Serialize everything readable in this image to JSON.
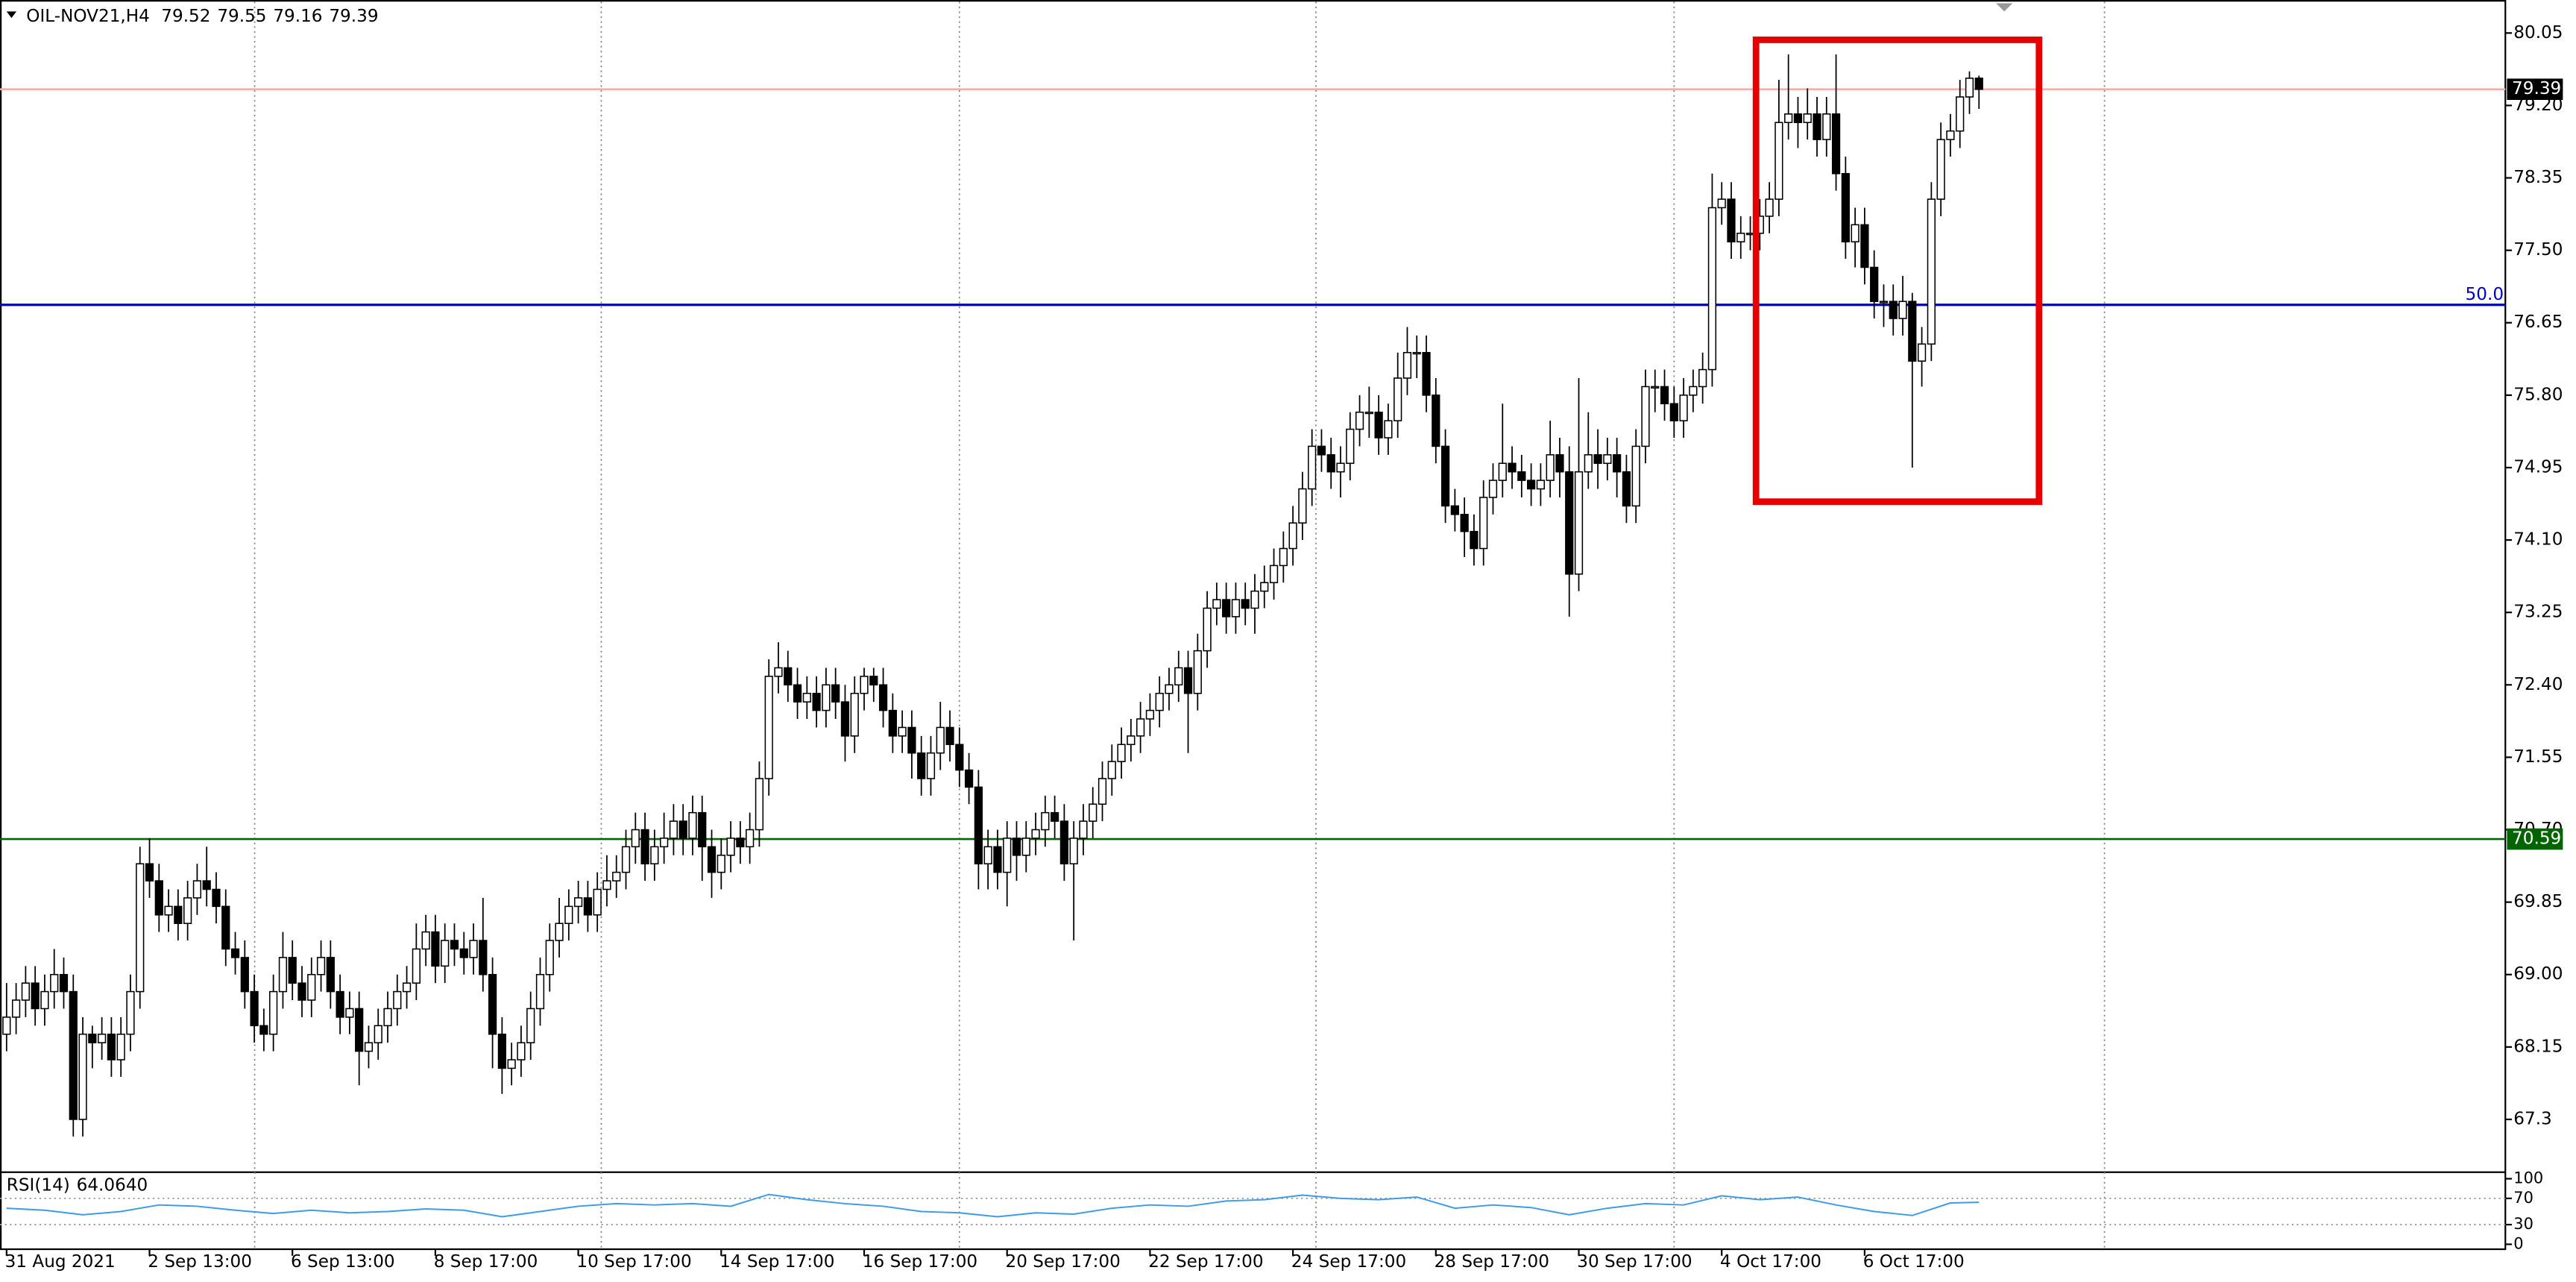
{
  "chart_data": {
    "type": "candlestick",
    "title": "OIL-NOV21,H4",
    "up_color": "#ffffff",
    "down_color": "#000000",
    "categories": [
      "31 Aug 2021",
      null,
      null,
      null,
      null,
      null,
      null,
      null,
      null,
      null,
      null,
      null,
      null,
      null,
      null,
      "2 Sep 13:00",
      null,
      null,
      null,
      null,
      null,
      null,
      null,
      null,
      null,
      null,
      null,
      null,
      null,
      null,
      "6 Sep 13:00",
      null,
      null,
      null,
      null,
      null,
      null,
      null,
      null,
      null,
      null,
      null,
      null,
      null,
      null,
      "8 Sep 17:00",
      null,
      null,
      null,
      null,
      null,
      null,
      null,
      null,
      null,
      null,
      null,
      null,
      null,
      null,
      "10 Sep 17:00",
      null,
      null,
      null,
      null,
      null,
      null,
      null,
      null,
      null,
      null,
      null,
      null,
      null,
      null,
      "14 Sep 17:00",
      null,
      null,
      null,
      null,
      null,
      null,
      null,
      null,
      null,
      null,
      null,
      null,
      null,
      null,
      "16 Sep 17:00",
      null,
      null,
      null,
      null,
      null,
      null,
      null,
      null,
      null,
      null,
      null,
      null,
      null,
      null,
      "20 Sep 17:00",
      null,
      null,
      null,
      null,
      null,
      null,
      null,
      null,
      null,
      null,
      null,
      null,
      null,
      null,
      "22 Sep 17:00",
      null,
      null,
      null,
      null,
      null,
      null,
      null,
      null,
      null,
      null,
      null,
      null,
      null,
      null,
      "24 Sep 17:00",
      null,
      null,
      null,
      null,
      null,
      null,
      null,
      null,
      null,
      null,
      null,
      null,
      null,
      null,
      "28 Sep 17:00",
      null,
      null,
      null,
      null,
      null,
      null,
      null,
      null,
      null,
      null,
      null,
      null,
      null,
      null,
      "30 Sep 17:00",
      null,
      null,
      null,
      null,
      null,
      null,
      null,
      null,
      null,
      null,
      null,
      null,
      null,
      null,
      "4 Oct 17:00",
      null,
      null,
      null,
      null,
      null,
      null,
      null,
      null,
      null,
      null,
      null,
      null,
      null,
      null,
      "6 Oct 17:00",
      null,
      null,
      null,
      null,
      null,
      null,
      null,
      null,
      null,
      null,
      null,
      null
    ],
    "open": [
      68.3,
      68.5,
      68.7,
      68.9,
      68.6,
      68.8,
      69.0,
      68.8,
      67.3,
      68.3,
      68.2,
      68.3,
      68.0,
      68.3,
      68.8,
      70.3,
      70.1,
      69.7,
      69.8,
      69.6,
      69.9,
      70.1,
      70.0,
      69.8,
      69.3,
      69.2,
      68.8,
      68.4,
      68.3,
      68.8,
      69.2,
      68.9,
      68.7,
      69.0,
      69.2,
      68.8,
      68.5,
      68.6,
      68.1,
      68.2,
      68.4,
      68.6,
      68.8,
      68.9,
      69.3,
      69.5,
      69.1,
      69.4,
      69.3,
      69.2,
      69.4,
      69.0,
      68.3,
      67.9,
      68.0,
      68.2,
      68.6,
      69.0,
      69.4,
      69.6,
      69.8,
      69.9,
      69.7,
      70.0,
      70.1,
      70.2,
      70.5,
      70.7,
      70.3,
      70.5,
      70.6,
      70.8,
      70.6,
      70.9,
      70.5,
      70.2,
      70.4,
      70.6,
      70.5,
      70.7,
      71.3,
      72.5,
      72.6,
      72.4,
      72.2,
      72.3,
      72.1,
      72.4,
      72.2,
      71.8,
      72.3,
      72.5,
      72.4,
      72.1,
      71.8,
      71.9,
      71.6,
      71.3,
      71.6,
      71.9,
      71.7,
      71.4,
      71.2,
      70.3,
      70.5,
      70.2,
      70.6,
      70.4,
      70.6,
      70.7,
      70.9,
      70.8,
      70.3,
      70.6,
      70.8,
      71.0,
      71.3,
      71.5,
      71.7,
      71.8,
      72.0,
      72.1,
      72.3,
      72.4,
      72.6,
      72.3,
      72.8,
      73.3,
      73.4,
      73.2,
      73.4,
      73.3,
      73.5,
      73.6,
      73.8,
      74.0,
      74.3,
      74.7,
      75.2,
      75.1,
      74.9,
      75.0,
      75.4,
      75.6,
      75.6,
      75.3,
      75.5,
      76.0,
      76.3,
      76.3,
      75.8,
      75.2,
      74.5,
      74.4,
      74.2,
      74.0,
      74.6,
      74.8,
      75.0,
      74.9,
      74.8,
      74.7,
      74.8,
      75.1,
      74.9,
      73.7,
      74.9,
      75.1,
      75.0,
      75.1,
      74.9,
      74.5,
      75.2,
      75.9,
      75.9,
      75.7,
      75.5,
      75.8,
      75.9,
      76.1,
      78.0,
      78.1,
      77.6,
      77.7,
      77.7,
      77.9,
      78.1,
      79.0,
      79.1,
      79.0,
      79.1,
      78.8,
      79.1,
      78.4,
      77.6,
      77.8,
      77.3,
      76.9,
      76.9,
      76.7,
      76.9,
      76.2,
      76.4,
      78.1,
      78.8,
      78.9,
      79.3,
      79.52
    ],
    "high": [
      68.9,
      68.9,
      69.1,
      69.1,
      69.0,
      69.3,
      69.2,
      69.0,
      68.5,
      68.4,
      68.5,
      68.5,
      68.5,
      69.0,
      70.5,
      70.6,
      70.3,
      70.0,
      70.0,
      70.1,
      70.3,
      70.5,
      70.2,
      70.0,
      69.5,
      69.4,
      69.0,
      68.6,
      69.0,
      69.5,
      69.4,
      69.1,
      69.2,
      69.4,
      69.4,
      69.0,
      68.8,
      68.8,
      68.4,
      68.6,
      68.8,
      69.0,
      69.1,
      69.6,
      69.7,
      69.7,
      69.6,
      69.6,
      69.5,
      69.6,
      69.9,
      69.2,
      68.5,
      68.2,
      68.4,
      68.8,
      69.2,
      69.6,
      69.9,
      70.0,
      70.1,
      70.1,
      70.2,
      70.4,
      70.4,
      70.7,
      70.9,
      70.9,
      70.7,
      70.9,
      71.0,
      71.0,
      71.1,
      71.1,
      70.7,
      70.6,
      70.8,
      70.8,
      70.9,
      71.5,
      72.7,
      72.9,
      72.8,
      72.6,
      72.5,
      72.5,
      72.6,
      72.6,
      72.4,
      72.5,
      72.6,
      72.6,
      72.6,
      72.3,
      72.1,
      72.1,
      71.8,
      71.8,
      72.2,
      72.1,
      71.9,
      71.6,
      71.4,
      70.7,
      70.7,
      70.8,
      70.8,
      70.8,
      70.9,
      71.1,
      71.1,
      71.0,
      70.8,
      71.0,
      71.2,
      71.5,
      71.7,
      71.9,
      72.0,
      72.2,
      72.3,
      72.5,
      72.6,
      72.8,
      72.8,
      73.0,
      73.5,
      73.6,
      73.6,
      73.6,
      73.6,
      73.7,
      73.8,
      74.0,
      74.2,
      74.5,
      74.9,
      75.4,
      75.4,
      75.3,
      75.2,
      75.6,
      75.8,
      75.9,
      75.8,
      75.7,
      76.3,
      76.6,
      76.5,
      76.5,
      76.0,
      75.4,
      74.7,
      74.6,
      74.4,
      74.8,
      75.0,
      75.7,
      75.2,
      75.1,
      75.0,
      75.0,
      75.5,
      75.3,
      75.2,
      76.0,
      75.6,
      75.4,
      75.3,
      75.3,
      75.1,
      75.4,
      76.1,
      76.1,
      76.1,
      75.9,
      76.0,
      76.1,
      76.3,
      78.4,
      78.3,
      78.3,
      77.9,
      77.9,
      78.1,
      78.3,
      79.5,
      79.8,
      79.3,
      79.4,
      79.3,
      79.3,
      79.8,
      78.6,
      78.0,
      78.0,
      77.5,
      77.1,
      77.1,
      77.2,
      77.0,
      76.6,
      78.3,
      79.0,
      79.1,
      79.5,
      79.6,
      79.55
    ],
    "low": [
      68.1,
      68.3,
      68.5,
      68.4,
      68.4,
      68.6,
      68.6,
      67.1,
      67.1,
      67.9,
      68.0,
      67.8,
      67.8,
      68.1,
      68.6,
      69.9,
      69.5,
      69.5,
      69.4,
      69.4,
      69.7,
      69.8,
      69.6,
      69.1,
      69.0,
      68.6,
      68.2,
      68.1,
      68.1,
      68.6,
      68.7,
      68.5,
      68.5,
      68.8,
      68.6,
      68.3,
      68.3,
      67.7,
      67.9,
      68.0,
      68.2,
      68.4,
      68.6,
      68.7,
      69.1,
      68.9,
      68.9,
      69.1,
      69.0,
      69.0,
      68.8,
      67.9,
      67.6,
      67.7,
      67.8,
      68.0,
      68.4,
      68.8,
      69.2,
      69.4,
      69.6,
      69.5,
      69.5,
      69.8,
      69.9,
      70.0,
      70.3,
      70.1,
      70.1,
      70.3,
      70.4,
      70.4,
      70.4,
      70.1,
      69.9,
      70.0,
      70.2,
      70.3,
      70.3,
      70.5,
      71.1,
      72.3,
      72.2,
      72.0,
      72.0,
      71.9,
      71.9,
      72.0,
      71.5,
      71.6,
      72.1,
      72.2,
      71.9,
      71.6,
      71.6,
      71.3,
      71.1,
      71.1,
      71.4,
      71.5,
      71.2,
      71.0,
      70.0,
      70.0,
      70.0,
      69.8,
      70.1,
      70.2,
      70.4,
      70.5,
      70.6,
      70.1,
      69.4,
      70.4,
      70.6,
      70.8,
      71.1,
      71.3,
      71.5,
      71.6,
      71.8,
      71.9,
      72.1,
      72.2,
      71.6,
      72.1,
      72.6,
      73.1,
      73.0,
      73.0,
      73.1,
      73.0,
      73.3,
      73.4,
      73.6,
      73.8,
      74.1,
      74.5,
      74.9,
      74.7,
      74.6,
      74.8,
      75.2,
      75.3,
      75.1,
      75.1,
      75.3,
      75.8,
      76.0,
      75.6,
      75.0,
      74.3,
      74.2,
      73.9,
      73.8,
      73.8,
      74.4,
      74.6,
      74.7,
      74.6,
      74.5,
      74.5,
      74.6,
      74.6,
      73.2,
      73.5,
      74.7,
      74.7,
      74.8,
      74.6,
      74.3,
      74.3,
      75.0,
      75.6,
      75.5,
      75.3,
      75.3,
      75.6,
      75.7,
      75.9,
      77.8,
      77.4,
      77.4,
      77.5,
      77.5,
      77.7,
      77.9,
      78.8,
      78.7,
      78.8,
      78.6,
      78.6,
      78.2,
      77.4,
      77.3,
      77.1,
      76.7,
      76.6,
      76.5,
      76.5,
      74.95,
      75.9,
      76.2,
      77.9,
      78.6,
      78.7,
      79.1,
      79.16
    ],
    "close": [
      68.5,
      68.7,
      68.9,
      68.6,
      68.8,
      69.0,
      68.8,
      67.3,
      68.3,
      68.2,
      68.3,
      68.0,
      68.3,
      68.8,
      70.3,
      70.1,
      69.7,
      69.8,
      69.6,
      69.9,
      70.1,
      70.0,
      69.8,
      69.3,
      69.2,
      68.8,
      68.4,
      68.3,
      68.8,
      69.2,
      68.9,
      68.7,
      69.0,
      69.2,
      68.8,
      68.5,
      68.6,
      68.1,
      68.2,
      68.4,
      68.6,
      68.8,
      68.9,
      69.3,
      69.5,
      69.1,
      69.4,
      69.3,
      69.2,
      69.4,
      69.0,
      68.3,
      67.9,
      68.0,
      68.2,
      68.6,
      69.0,
      69.4,
      69.6,
      69.8,
      69.9,
      69.7,
      70.0,
      70.1,
      70.2,
      70.5,
      70.7,
      70.3,
      70.5,
      70.6,
      70.8,
      70.6,
      70.9,
      70.5,
      70.2,
      70.4,
      70.6,
      70.5,
      70.7,
      71.3,
      72.5,
      72.6,
      72.4,
      72.2,
      72.3,
      72.1,
      72.4,
      72.2,
      71.8,
      72.3,
      72.5,
      72.4,
      72.1,
      71.8,
      71.9,
      71.6,
      71.3,
      71.6,
      71.9,
      71.7,
      71.4,
      71.2,
      70.3,
      70.5,
      70.2,
      70.6,
      70.4,
      70.6,
      70.7,
      70.9,
      70.8,
      70.3,
      70.6,
      70.8,
      71.0,
      71.3,
      71.5,
      71.7,
      71.8,
      72.0,
      72.1,
      72.3,
      72.4,
      72.6,
      72.3,
      72.8,
      73.3,
      73.4,
      73.2,
      73.4,
      73.3,
      73.5,
      73.6,
      73.8,
      74.0,
      74.3,
      74.7,
      75.2,
      75.1,
      74.9,
      75.0,
      75.4,
      75.6,
      75.6,
      75.3,
      75.5,
      76.0,
      76.3,
      76.3,
      75.8,
      75.2,
      74.5,
      74.4,
      74.2,
      74.0,
      74.6,
      74.8,
      75.0,
      74.9,
      74.8,
      74.7,
      74.8,
      75.1,
      74.9,
      73.7,
      74.9,
      75.1,
      75.0,
      75.1,
      74.9,
      74.5,
      75.2,
      75.9,
      75.9,
      75.7,
      75.5,
      75.8,
      75.9,
      76.1,
      78.0,
      78.1,
      77.6,
      77.7,
      77.7,
      77.9,
      78.1,
      79.0,
      79.1,
      79.0,
      79.1,
      78.8,
      79.1,
      78.4,
      77.6,
      77.8,
      77.3,
      76.9,
      76.9,
      76.7,
      76.9,
      76.2,
      76.4,
      78.1,
      78.8,
      78.9,
      79.3,
      79.52,
      79.39
    ],
    "ylim": [
      66.7,
      80.38
    ],
    "yticks": [
      80.05,
      {
        "value": 79.2,
        "label": "79.20"
      },
      78.35,
      {
        "value": 77.5,
        "label": "77.50"
      },
      76.65,
      {
        "value": 75.8,
        "label": "75.80"
      },
      74.95,
      {
        "value": 74.1,
        "label": "74.10"
      },
      73.25,
      {
        "value": 72.4,
        "label": "72.40"
      },
      71.55,
      {
        "value": 70.7,
        "label": "70.70"
      },
      69.85,
      {
        "value": 69.0,
        "label": "69.00"
      },
      68.15,
      67.3
    ],
    "hlines": [
      {
        "value": 79.39,
        "color": "#f4b0a8",
        "box": "#000000"
      },
      {
        "value": 76.86,
        "color": "#0000cd",
        "label": "50.0"
      },
      {
        "value": 70.59,
        "color": "#006400",
        "box": "#006400"
      }
    ],
    "highlight": {
      "x": [
        183.6,
        213.3
      ],
      "y": [
        74.55,
        79.97
      ],
      "color": "#e60000"
    },
    "rsi": {
      "type": "line",
      "name": "RSI(14)",
      "current": {
        "value": 64.064,
        "label": "64.0640"
      },
      "color": "#3d9be9",
      "ylim": [
        0,
        100
      ],
      "yticks": [
        100,
        70,
        30,
        0
      ],
      "levels": [
        70,
        30
      ],
      "x": [
        0,
        4,
        8,
        12,
        16,
        20,
        24,
        28,
        32,
        36,
        40,
        44,
        48,
        52,
        56,
        60,
        64,
        68,
        72,
        76,
        80,
        84,
        88,
        92,
        96,
        100,
        104,
        108,
        112,
        116,
        120,
        124,
        128,
        132,
        136,
        140,
        144,
        148,
        152,
        156,
        160,
        164,
        168,
        172,
        176,
        180,
        184,
        188,
        192,
        196,
        200,
        204,
        207
      ],
      "values": [
        55,
        52,
        45,
        50,
        60,
        58,
        52,
        47,
        52,
        48,
        50,
        54,
        52,
        42,
        50,
        58,
        62,
        60,
        62,
        58,
        76,
        68,
        62,
        58,
        50,
        48,
        42,
        48,
        46,
        55,
        60,
        58,
        66,
        68,
        75,
        70,
        68,
        72,
        55,
        60,
        56,
        45,
        55,
        62,
        60,
        74,
        68,
        72,
        60,
        50,
        44,
        63,
        64.064
      ]
    }
  }
}
